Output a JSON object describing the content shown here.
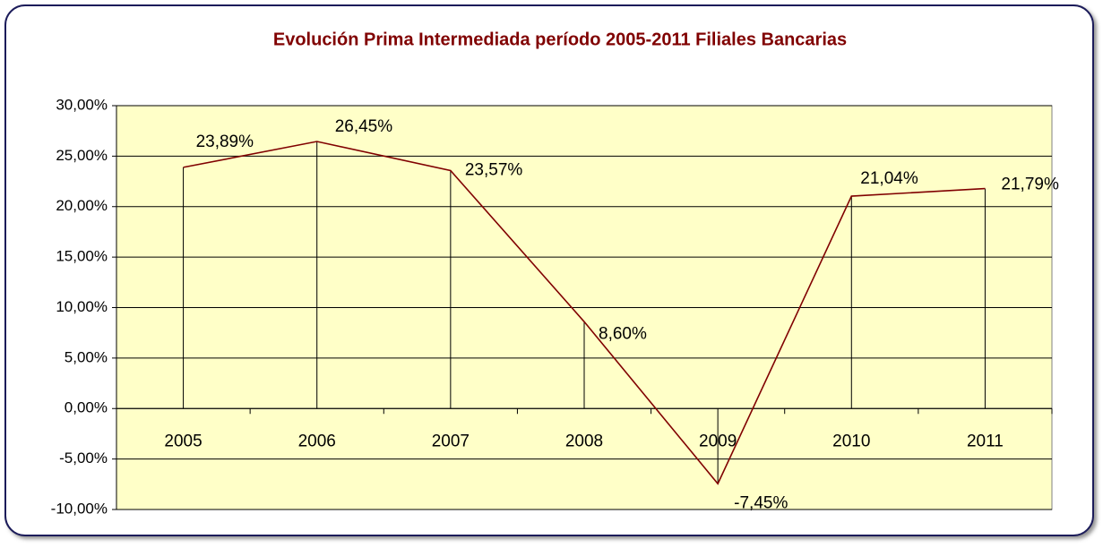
{
  "chart_data": {
    "type": "line",
    "title": "Evolución Prima Intermediada período 2005-2011 Filiales Bancarias",
    "categories": [
      "2005",
      "2006",
      "2007",
      "2008",
      "2009",
      "2010",
      "2011"
    ],
    "series": [
      {
        "name": "Prima Intermediada",
        "color": "#800000",
        "values": [
          23.89,
          26.45,
          23.57,
          8.6,
          -7.45,
          21.04,
          21.79
        ],
        "value_labels": [
          "23,89%",
          "26,45%",
          "23,57%",
          "8,60%",
          "-7,45%",
          "21,04%",
          "21,79%"
        ]
      }
    ],
    "ylim": [
      -10,
      30
    ],
    "yticks": [
      {
        "value": -10,
        "label": "-10,00%"
      },
      {
        "value": -5,
        "label": "-5,00%"
      },
      {
        "value": 0,
        "label": "0,00%"
      },
      {
        "value": 5,
        "label": "5,00%"
      },
      {
        "value": 10,
        "label": "10,00%"
      },
      {
        "value": 15,
        "label": "15,00%"
      },
      {
        "value": 20,
        "label": "20,00%"
      },
      {
        "value": 25,
        "label": "25,00%"
      },
      {
        "value": 30,
        "label": "30,00%"
      }
    ],
    "grid": true,
    "drop_lines": true,
    "plot_background": "#ffffc8"
  }
}
